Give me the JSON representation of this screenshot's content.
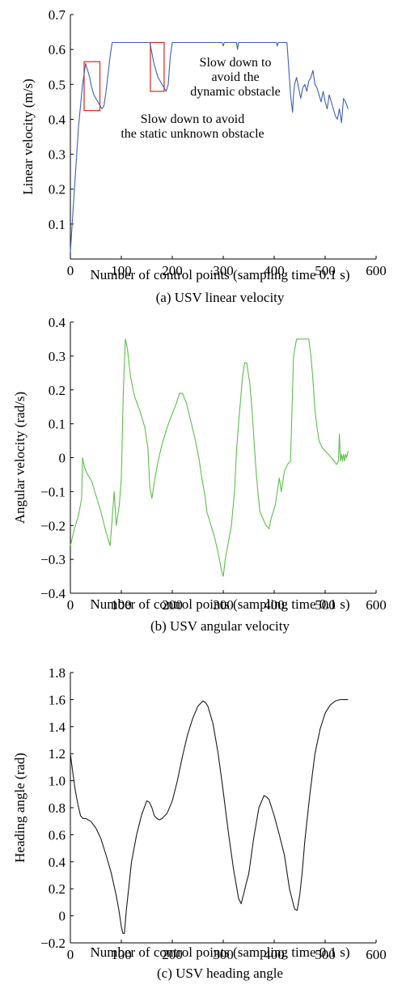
{
  "chart_data": [
    {
      "type": "line",
      "caption": "(a) USV linear velocity",
      "xlabel": "Number of control points (sampling time 0.1 s)",
      "ylabel": "Linear velocity (m/s)",
      "xlim": [
        0,
        600
      ],
      "ylim": [
        0,
        0.7
      ],
      "xticks": [
        0,
        100,
        200,
        300,
        400,
        500,
        600
      ],
      "yticks": [
        0.1,
        0.2,
        0.3,
        0.4,
        0.5,
        0.6,
        0.7
      ],
      "ytick_labels": [
        "0.1",
        "0.2",
        "0.3",
        "0.4",
        "0.5",
        "0.6",
        "0.7"
      ],
      "line_color": "#3f5fb5",
      "series": [
        {
          "x": [
            0,
            8,
            16,
            24,
            30,
            34,
            38,
            42,
            46,
            50,
            54,
            58,
            62,
            66,
            70,
            74,
            78,
            82,
            90,
            100,
            110,
            120,
            140,
            150,
            156,
            160,
            164,
            168,
            172,
            176,
            180,
            184,
            188,
            192,
            196,
            200,
            230,
            260,
            280,
            298,
            300,
            302,
            320,
            326,
            328,
            330,
            360,
            392,
            404,
            406,
            408,
            425,
            428,
            432,
            436,
            438,
            440,
            444,
            448,
            452,
            456,
            460,
            464,
            468,
            472,
            476,
            480,
            484,
            488,
            492,
            496,
            500,
            504,
            508,
            512,
            516,
            520,
            524,
            528,
            530,
            532,
            536,
            540,
            545
          ],
          "y": [
            0.02,
            0.2,
            0.38,
            0.5,
            0.56,
            0.54,
            0.52,
            0.49,
            0.47,
            0.46,
            0.45,
            0.44,
            0.43,
            0.44,
            0.48,
            0.53,
            0.58,
            0.62,
            0.62,
            0.62,
            0.62,
            0.62,
            0.62,
            0.62,
            0.62,
            0.59,
            0.56,
            0.54,
            0.52,
            0.51,
            0.5,
            0.49,
            0.48,
            0.5,
            0.58,
            0.62,
            0.62,
            0.62,
            0.62,
            0.62,
            0.61,
            0.62,
            0.62,
            0.62,
            0.6,
            0.62,
            0.62,
            0.62,
            0.62,
            0.61,
            0.62,
            0.62,
            0.56,
            0.47,
            0.42,
            0.47,
            0.5,
            0.52,
            0.49,
            0.46,
            0.49,
            0.5,
            0.48,
            0.51,
            0.52,
            0.54,
            0.5,
            0.49,
            0.47,
            0.45,
            0.48,
            0.45,
            0.43,
            0.47,
            0.45,
            0.43,
            0.41,
            0.4,
            0.43,
            0.41,
            0.39,
            0.46,
            0.45,
            0.43
          ]
        }
      ],
      "highlight_boxes": [
        {
          "x": [
            27,
            58
          ],
          "y": [
            0.425,
            0.565
          ]
        },
        {
          "x": [
            157,
            184
          ],
          "y": [
            0.48,
            0.62
          ]
        }
      ],
      "annotations": [
        {
          "lines": [
            "Slow down to",
            "avoid the",
            "dynamic obstacle"
          ]
        },
        {
          "lines": [
            "Slow down to avoid",
            "the static unknown obstacle"
          ]
        }
      ]
    },
    {
      "type": "line",
      "caption": "(b) USV angular velocity",
      "xlabel": "Number of control points (sampling time 0.1 s)",
      "ylabel": "Angular velocity (rad/s)",
      "xlim": [
        0,
        600
      ],
      "ylim": [
        -0.4,
        0.4
      ],
      "xticks": [
        0,
        100,
        200,
        300,
        400,
        500,
        600
      ],
      "yticks": [
        -0.4,
        -0.3,
        -0.2,
        -0.1,
        0,
        0.1,
        0.2,
        0.3,
        0.4
      ],
      "ytick_labels": [
        "−0.4",
        "−0.3",
        "−0.2",
        "−0.1",
        "0",
        "0.1",
        "0.2",
        "0.3",
        "0.4"
      ],
      "line_color": "#5cbf4a",
      "series": [
        {
          "x": [
            0,
            8,
            16,
            22,
            24,
            28,
            34,
            42,
            50,
            60,
            70,
            78,
            82,
            86,
            90,
            96,
            100,
            104,
            108,
            112,
            118,
            126,
            136,
            146,
            152,
            156,
            160,
            166,
            172,
            180,
            190,
            200,
            208,
            214,
            220,
            228,
            236,
            244,
            252,
            258,
            264,
            268,
            274,
            282,
            290,
            296,
            300,
            304,
            310,
            316,
            322,
            326,
            330,
            334,
            338,
            342,
            346,
            352,
            356,
            360,
            364,
            368,
            372,
            378,
            384,
            390,
            394,
            398,
            402,
            406,
            410,
            414,
            420,
            426,
            432,
            438,
            444,
            450,
            456,
            462,
            468,
            472,
            476,
            480,
            484,
            488,
            494,
            500,
            506,
            512,
            518,
            522,
            526,
            528,
            530,
            532,
            534,
            536,
            538,
            540,
            542,
            545
          ],
          "y": [
            -0.26,
            -0.21,
            -0.17,
            -0.12,
            0.0,
            -0.03,
            -0.05,
            -0.07,
            -0.11,
            -0.16,
            -0.22,
            -0.26,
            -0.18,
            -0.1,
            -0.2,
            -0.14,
            -0.06,
            0.2,
            0.35,
            0.32,
            0.24,
            0.18,
            0.14,
            0.09,
            0.03,
            -0.09,
            -0.12,
            -0.06,
            -0.01,
            0.04,
            0.09,
            0.13,
            0.16,
            0.19,
            0.19,
            0.16,
            0.11,
            0.06,
            0.0,
            -0.06,
            -0.11,
            -0.16,
            -0.19,
            -0.23,
            -0.28,
            -0.33,
            -0.35,
            -0.3,
            -0.25,
            -0.2,
            -0.1,
            0.02,
            0.1,
            0.17,
            0.24,
            0.28,
            0.28,
            0.22,
            0.15,
            0.06,
            -0.03,
            -0.1,
            -0.16,
            -0.18,
            -0.2,
            -0.21,
            -0.18,
            -0.16,
            -0.14,
            -0.1,
            -0.06,
            -0.1,
            -0.04,
            -0.02,
            -0.01,
            0.3,
            0.35,
            0.35,
            0.35,
            0.35,
            0.35,
            0.3,
            0.23,
            0.14,
            0.09,
            0.05,
            0.03,
            0.02,
            0.01,
            0.0,
            -0.01,
            -0.02,
            -0.01,
            0.07,
            -0.01,
            0.01,
            -0.01,
            0.01,
            -0.01,
            0.01,
            0.0,
            0.02
          ]
        }
      ]
    },
    {
      "type": "line",
      "caption": "(c) USV heading angle",
      "xlabel": "Number of control points (sampling time 0.1 s)",
      "ylabel": "Heading angle (rad)",
      "xlim": [
        0,
        600
      ],
      "ylim": [
        -0.2,
        1.8
      ],
      "xticks": [
        0,
        100,
        200,
        300,
        400,
        500,
        600
      ],
      "yticks": [
        -0.2,
        0,
        0.2,
        0.4,
        0.6,
        0.8,
        1.0,
        1.2,
        1.4,
        1.6,
        1.8
      ],
      "ytick_labels": [
        "−0.2",
        "0",
        "0.2",
        "0.4",
        "0.6",
        "0.8",
        "1.0",
        "1.2",
        "1.4",
        "1.6",
        "1.8"
      ],
      "line_color": "#1a1a1a",
      "series": [
        {
          "x": [
            0,
            5,
            10,
            15,
            20,
            25,
            30,
            40,
            50,
            60,
            70,
            80,
            90,
            95,
            100,
            103,
            106,
            110,
            115,
            120,
            130,
            140,
            150,
            155,
            160,
            165,
            170,
            175,
            180,
            190,
            200,
            210,
            220,
            230,
            240,
            250,
            260,
            265,
            270,
            280,
            290,
            300,
            310,
            320,
            330,
            335,
            340,
            345,
            350,
            360,
            370,
            380,
            385,
            390,
            400,
            410,
            420,
            430,
            440,
            445,
            450,
            455,
            460,
            470,
            480,
            490,
            500,
            510,
            520,
            530,
            540,
            545
          ],
          "y": [
            1.2,
            1.05,
            0.92,
            0.82,
            0.74,
            0.72,
            0.72,
            0.7,
            0.65,
            0.57,
            0.45,
            0.32,
            0.15,
            0.05,
            -0.08,
            -0.13,
            -0.13,
            0.05,
            0.22,
            0.4,
            0.6,
            0.75,
            0.85,
            0.84,
            0.8,
            0.74,
            0.72,
            0.71,
            0.72,
            0.76,
            0.85,
            1.0,
            1.18,
            1.34,
            1.46,
            1.55,
            1.59,
            1.58,
            1.55,
            1.42,
            1.2,
            0.92,
            0.62,
            0.35,
            0.13,
            0.09,
            0.16,
            0.24,
            0.31,
            0.58,
            0.8,
            0.89,
            0.88,
            0.86,
            0.74,
            0.6,
            0.45,
            0.2,
            0.05,
            0.04,
            0.15,
            0.32,
            0.55,
            0.9,
            1.2,
            1.38,
            1.5,
            1.56,
            1.59,
            1.6,
            1.6,
            1.6
          ]
        }
      ]
    }
  ]
}
